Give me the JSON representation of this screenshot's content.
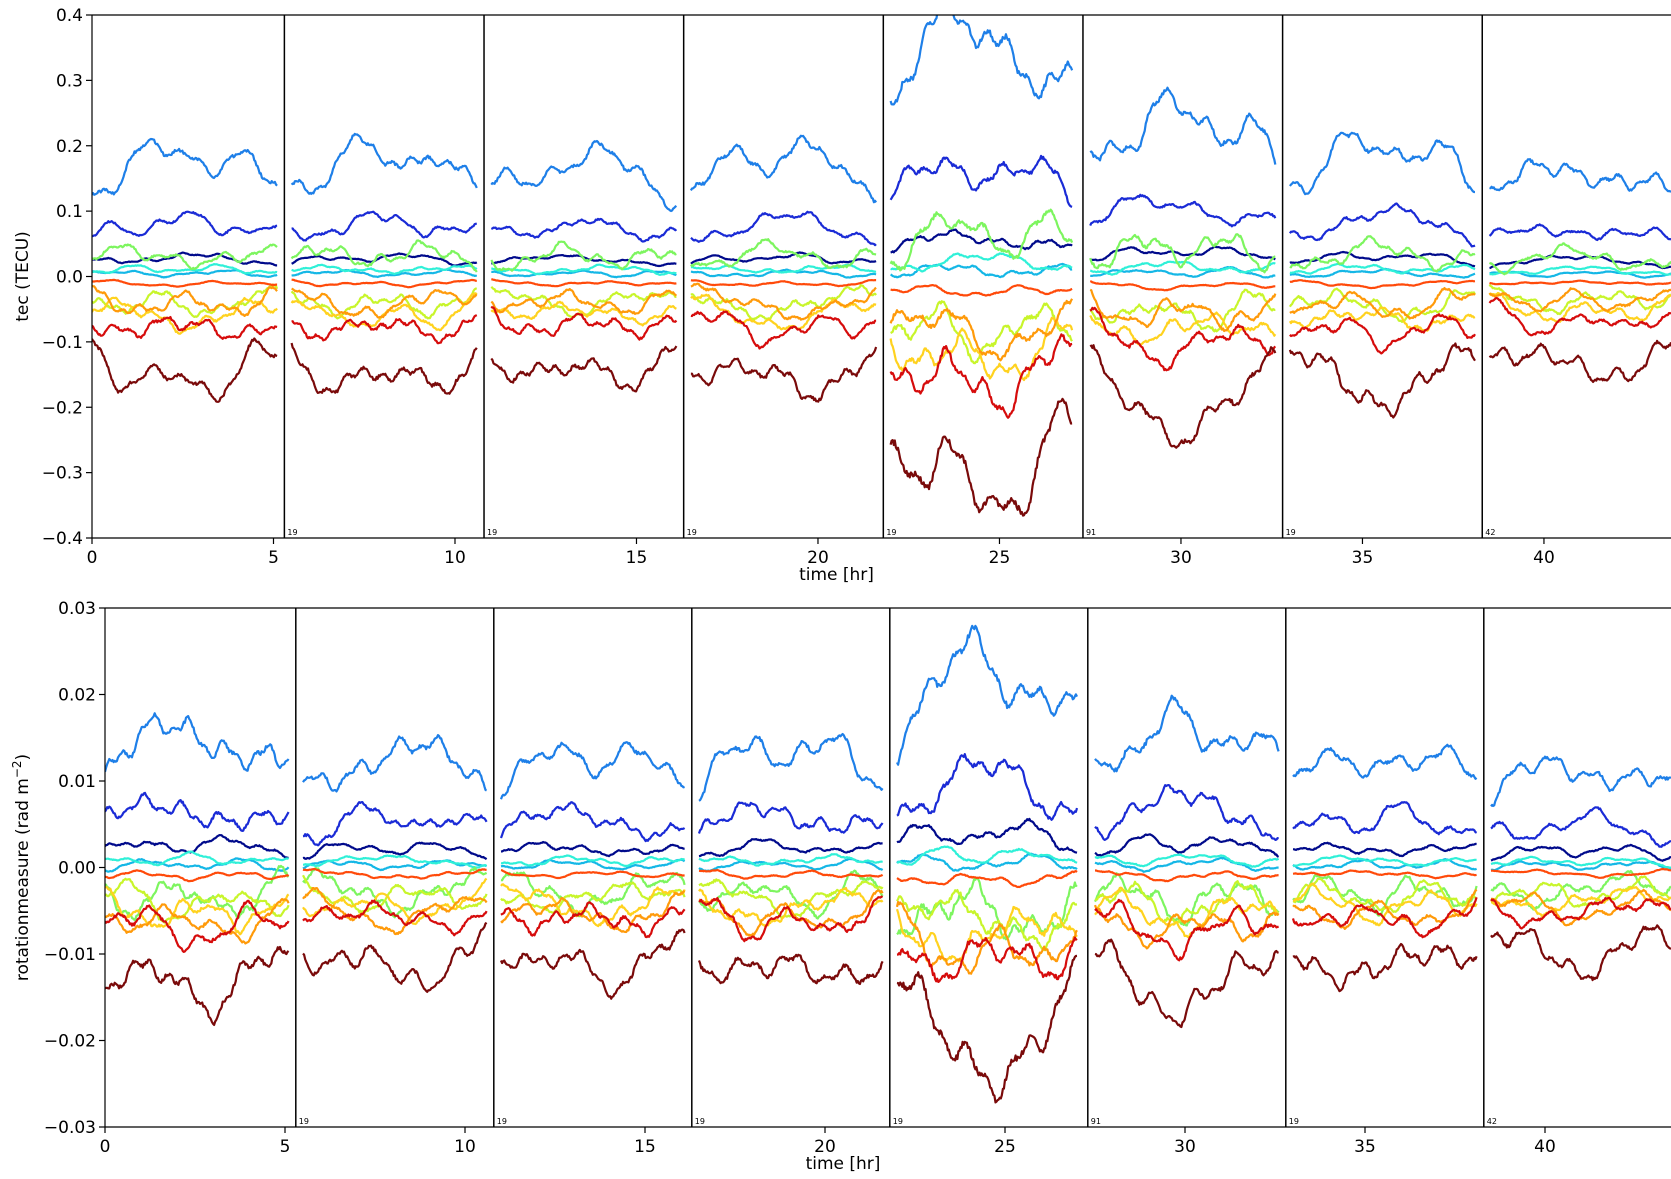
{
  "chart_data": [
    {
      "type": "line",
      "xlabel": "time [hr]",
      "ylabel": "tec (TECU)",
      "xlim": [
        0,
        43.5
      ],
      "ylim": [
        -0.4,
        0.4
      ],
      "x_ticks": [
        0,
        5,
        10,
        15,
        20,
        25,
        30,
        35,
        40
      ],
      "x_tick_labels": [
        "0",
        "5",
        "10",
        "15",
        "20",
        "25",
        "30",
        "35",
        "40"
      ],
      "y_ticks": [
        -0.4,
        -0.3,
        -0.2,
        -0.1,
        0.0,
        0.1,
        0.2,
        0.3,
        0.4
      ],
      "y_tick_labels": [
        "−0.4",
        "−0.3",
        "−0.2",
        "−0.1",
        "0.0",
        "0.1",
        "0.2",
        "0.3",
        "0.4"
      ],
      "segment_boundaries": [
        5.3,
        10.8,
        16.3,
        21.8,
        27.3,
        32.8,
        38.3
      ],
      "segment_tags": [
        {
          "x": 5.3,
          "text": "19"
        },
        {
          "x": 10.8,
          "text": "19"
        },
        {
          "x": 16.3,
          "text": "19"
        },
        {
          "x": 21.8,
          "text": "19"
        },
        {
          "x": 27.3,
          "text": "91"
        },
        {
          "x": 32.8,
          "text": "19"
        },
        {
          "x": 38.3,
          "text": "42"
        }
      ],
      "segments": [
        {
          "start": 0.0,
          "end": 5.1,
          "scale": 0.8,
          "seed": 1
        },
        {
          "start": 5.5,
          "end": 10.6,
          "scale": 0.8,
          "seed": 2
        },
        {
          "start": 11.0,
          "end": 16.1,
          "scale": 0.75,
          "seed": 3
        },
        {
          "start": 16.5,
          "end": 21.6,
          "scale": 0.8,
          "seed": 4
        },
        {
          "start": 22.0,
          "end": 27.0,
          "scale": 1.6,
          "seed": 5
        },
        {
          "start": 27.5,
          "end": 32.6,
          "scale": 1.05,
          "seed": 6
        },
        {
          "start": 33.0,
          "end": 38.1,
          "scale": 0.85,
          "seed": 7
        },
        {
          "start": 38.5,
          "end": 43.5,
          "scale": 0.7,
          "seed": 8
        }
      ],
      "series": [
        {
          "color": "#1E7FE8",
          "offset": 0.19,
          "amplitude": 0.045
        },
        {
          "color": "#1A2BD6",
          "offset": 0.085,
          "amplitude": 0.025
        },
        {
          "color": "#000A8B",
          "offset": 0.03,
          "amplitude": 0.01
        },
        {
          "color": "#15B7E6",
          "offset": 0.005,
          "amplitude": 0.008
        },
        {
          "color": "#2FF0D8",
          "offset": 0.012,
          "amplitude": 0.01
        },
        {
          "color": "#7DF55F",
          "offset": 0.035,
          "amplitude": 0.03
        },
        {
          "color": "#C8F52B",
          "offset": -0.045,
          "amplitude": 0.03
        },
        {
          "color": "#FFD21F",
          "offset": -0.065,
          "amplitude": 0.03
        },
        {
          "color": "#FF9A0A",
          "offset": -0.045,
          "amplitude": 0.03
        },
        {
          "color": "#FF4A0A",
          "offset": -0.012,
          "amplitude": 0.006
        },
        {
          "color": "#D60C0C",
          "offset": -0.085,
          "amplitude": 0.035
        },
        {
          "color": "#7A0A0A",
          "offset": -0.165,
          "amplitude": 0.05
        }
      ]
    },
    {
      "type": "line",
      "xlabel": "time [hr]",
      "ylabel": "rotationmeasure (rad m",
      "ylabel_sup": "−2",
      "ylabel_end": ")",
      "xlim": [
        0,
        43.5
      ],
      "ylim": [
        -0.03,
        0.03
      ],
      "x_ticks": [
        0,
        5,
        10,
        15,
        20,
        25,
        30,
        35,
        40
      ],
      "x_tick_labels": [
        "0",
        "5",
        "10",
        "15",
        "20",
        "25",
        "30",
        "35",
        "40"
      ],
      "y_ticks": [
        -0.03,
        -0.02,
        -0.01,
        0.0,
        0.01,
        0.02,
        0.03
      ],
      "y_tick_labels": [
        "−0.03",
        "−0.02",
        "−0.01",
        "0.00",
        "0.01",
        "0.02",
        "0.03"
      ],
      "segment_boundaries": [
        5.3,
        10.8,
        16.3,
        21.8,
        27.3,
        32.8,
        38.3
      ],
      "segment_tags": [
        {
          "x": 5.3,
          "text": "19"
        },
        {
          "x": 10.8,
          "text": "19"
        },
        {
          "x": 16.3,
          "text": "19"
        },
        {
          "x": 21.8,
          "text": "19"
        },
        {
          "x": 27.3,
          "text": "91"
        },
        {
          "x": 32.8,
          "text": "19"
        },
        {
          "x": 38.3,
          "text": "42"
        }
      ],
      "segments": [
        {
          "start": 0.0,
          "end": 5.1,
          "scale": 1.0,
          "seed": 11
        },
        {
          "start": 5.5,
          "end": 10.6,
          "scale": 0.85,
          "seed": 12
        },
        {
          "start": 11.0,
          "end": 16.1,
          "scale": 0.85,
          "seed": 13
        },
        {
          "start": 16.5,
          "end": 21.6,
          "scale": 0.9,
          "seed": 14
        },
        {
          "start": 22.0,
          "end": 27.0,
          "scale": 1.5,
          "seed": 15
        },
        {
          "start": 27.5,
          "end": 32.6,
          "scale": 1.05,
          "seed": 16
        },
        {
          "start": 33.0,
          "end": 38.1,
          "scale": 0.85,
          "seed": 17
        },
        {
          "start": 38.5,
          "end": 43.5,
          "scale": 0.75,
          "seed": 18
        }
      ],
      "series": [
        {
          "color": "#1E7FE8",
          "offset": 0.0125,
          "amplitude": 0.0035
        },
        {
          "color": "#1A2BD6",
          "offset": 0.0055,
          "amplitude": 0.0025
        },
        {
          "color": "#000A8B",
          "offset": 0.0022,
          "amplitude": 0.0012
        },
        {
          "color": "#15B7E6",
          "offset": 0.0003,
          "amplitude": 0.0008
        },
        {
          "color": "#2FF0D8",
          "offset": 0.0008,
          "amplitude": 0.0008
        },
        {
          "color": "#7DF55F",
          "offset": -0.003,
          "amplitude": 0.003
        },
        {
          "color": "#C8F52B",
          "offset": -0.0035,
          "amplitude": 0.0025
        },
        {
          "color": "#FFD21F",
          "offset": -0.0045,
          "amplitude": 0.0025
        },
        {
          "color": "#FF9A0A",
          "offset": -0.0055,
          "amplitude": 0.0025
        },
        {
          "color": "#FF4A0A",
          "offset": -0.0008,
          "amplitude": 0.0006
        },
        {
          "color": "#D60C0C",
          "offset": -0.006,
          "amplitude": 0.0028
        },
        {
          "color": "#7A0A0A",
          "offset": -0.0115,
          "amplitude": 0.0038
        }
      ]
    }
  ]
}
